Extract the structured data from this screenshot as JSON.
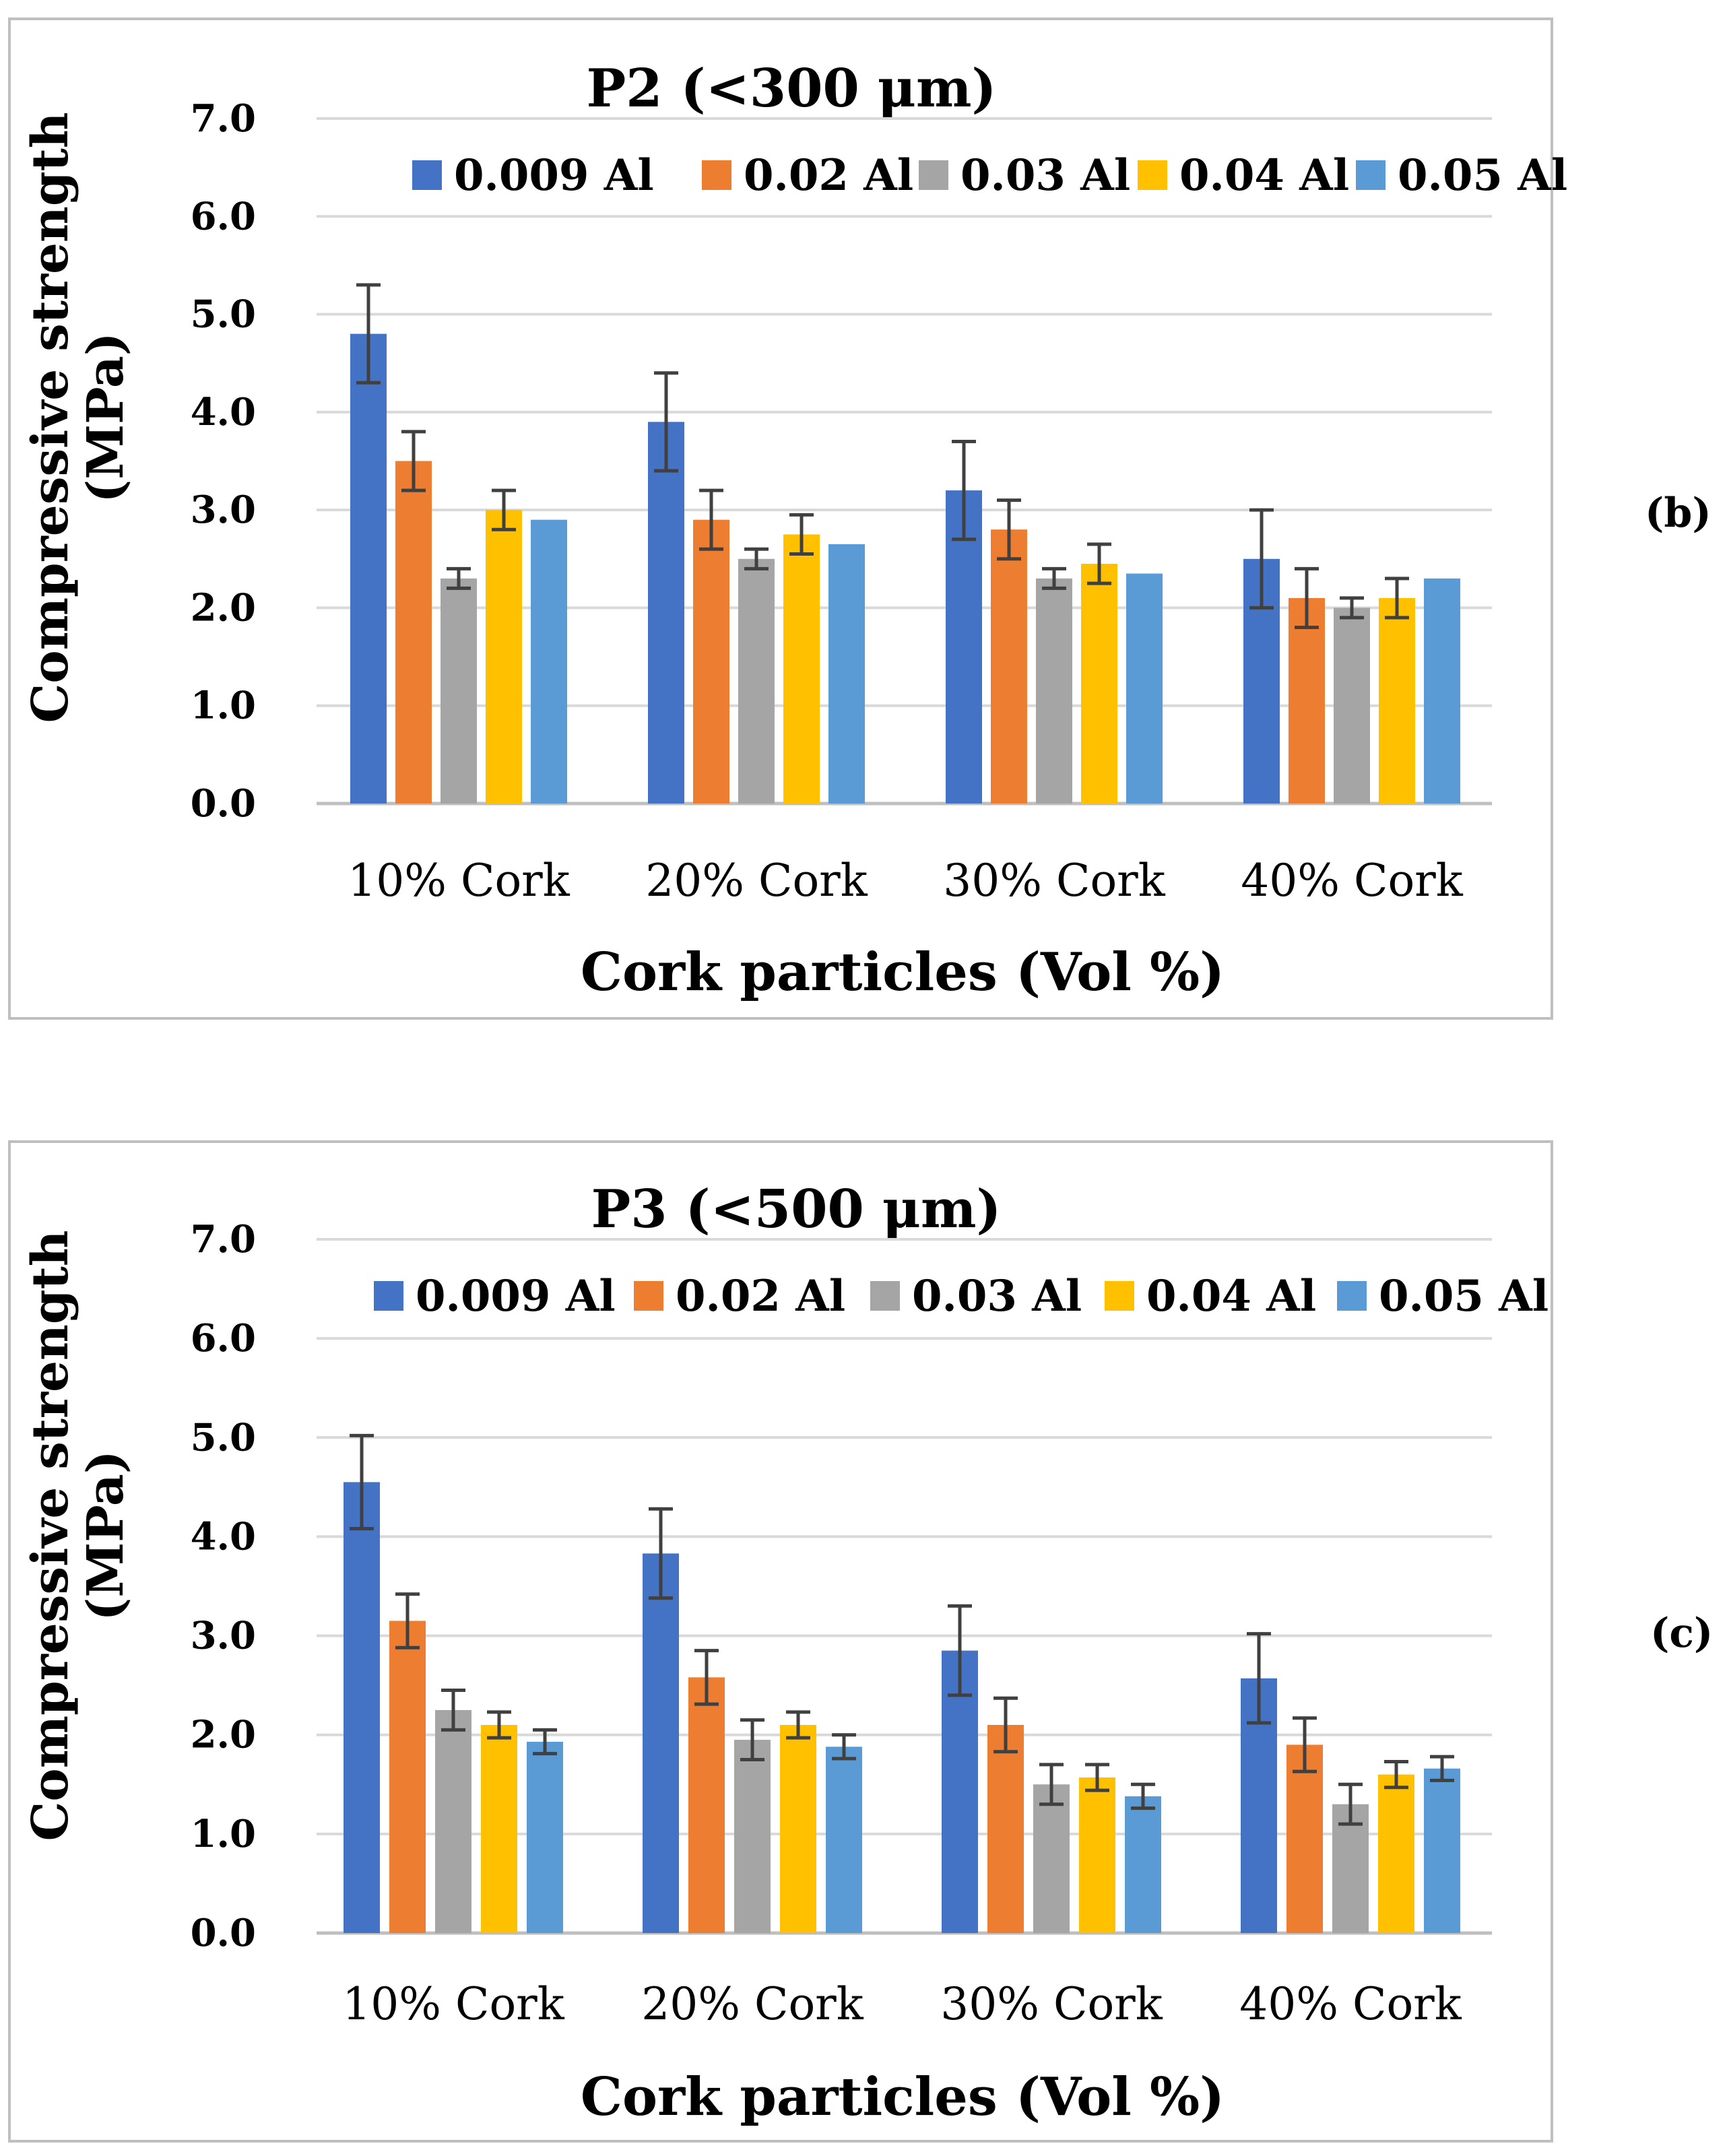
{
  "chart_data": [
    {
      "type": "bar",
      "panel_label": "(b)",
      "title": "P2 (<300 μm)",
      "xlabel": "Cork particles (Vol %)",
      "ylabel": [
        "Compressive strength",
        "(MPa)"
      ],
      "ylim": [
        0,
        7
      ],
      "yticks": [
        "0.0",
        "1.0",
        "2.0",
        "3.0",
        "4.0",
        "5.0",
        "6.0",
        "7.0"
      ],
      "grid": true,
      "legend_position": "top",
      "categories": [
        "10% Cork",
        "20% Cork",
        "30% Cork",
        "40% Cork"
      ],
      "series": [
        {
          "name": "0.009 Al",
          "color": "#4472C4",
          "values": [
            4.8,
            3.9,
            3.2,
            2.5
          ],
          "errors": [
            0.5,
            0.5,
            0.5,
            0.5
          ]
        },
        {
          "name": "0.02 Al",
          "color": "#ED7D31",
          "values": [
            3.5,
            2.9,
            2.8,
            2.1
          ],
          "errors": [
            0.3,
            0.3,
            0.3,
            0.3
          ]
        },
        {
          "name": "0.03 Al",
          "color": "#A5A5A5",
          "values": [
            2.3,
            2.5,
            2.3,
            2.0
          ],
          "errors": [
            0.1,
            0.1,
            0.1,
            0.1
          ]
        },
        {
          "name": "0.04 Al",
          "color": "#FFC000",
          "values": [
            3.0,
            2.75,
            2.45,
            2.1
          ],
          "errors": [
            0.2,
            0.2,
            0.2,
            0.2
          ]
        },
        {
          "name": "0.05 Al",
          "color": "#5B9BD5",
          "values": [
            2.9,
            2.65,
            2.35,
            2.3
          ],
          "errors": [
            0,
            0,
            0,
            0
          ]
        }
      ]
    },
    {
      "type": "bar",
      "panel_label": "(c)",
      "title": "P3 (<500 μm)",
      "xlabel": "Cork particles (Vol %)",
      "ylabel": [
        "Compressive strength",
        "(MPa)"
      ],
      "ylim": [
        0,
        7
      ],
      "yticks": [
        "0.0",
        "1.0",
        "2.0",
        "3.0",
        "4.0",
        "5.0",
        "6.0",
        "7.0"
      ],
      "grid": true,
      "legend_position": "top",
      "categories": [
        "10% Cork",
        "20% Cork",
        "30% Cork",
        "40% Cork"
      ],
      "series": [
        {
          "name": "0.009 Al",
          "color": "#4472C4",
          "values": [
            4.55,
            3.83,
            2.85,
            2.57
          ],
          "errors": [
            0.47,
            0.45,
            0.45,
            0.45
          ]
        },
        {
          "name": "0.02 Al",
          "color": "#ED7D31",
          "values": [
            3.15,
            2.58,
            2.1,
            1.9
          ],
          "errors": [
            0.27,
            0.27,
            0.27,
            0.27
          ]
        },
        {
          "name": "0.03 Al",
          "color": "#A5A5A5",
          "values": [
            2.25,
            1.95,
            1.5,
            1.3
          ],
          "errors": [
            0.2,
            0.2,
            0.2,
            0.2
          ]
        },
        {
          "name": "0.04 Al",
          "color": "#FFC000",
          "values": [
            2.1,
            2.1,
            1.57,
            1.6
          ],
          "errors": [
            0.13,
            0.13,
            0.13,
            0.13
          ]
        },
        {
          "name": "0.05 Al",
          "color": "#5B9BD5",
          "values": [
            1.93,
            1.88,
            1.38,
            1.66
          ],
          "errors": [
            0.12,
            0.12,
            0.12,
            0.12
          ]
        }
      ]
    }
  ]
}
